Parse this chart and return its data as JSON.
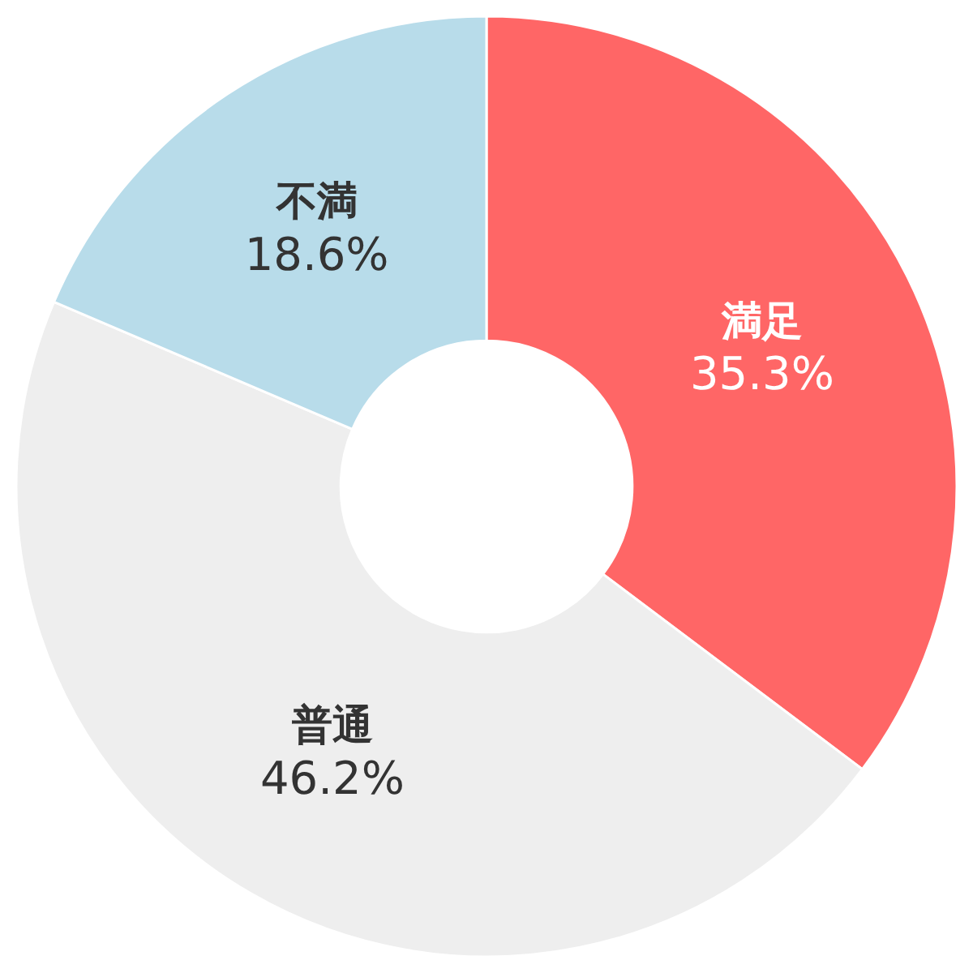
{
  "chart_data": {
    "type": "donut",
    "categories": [
      "満足",
      "普通",
      "不満"
    ],
    "values": [
      35.3,
      46.2,
      18.6
    ],
    "value_labels": [
      "35.3%",
      "46.2%",
      "18.6%"
    ],
    "colors": [
      "#ff6666",
      "#eeeeee",
      "#b8dcea"
    ],
    "legend": false
  }
}
